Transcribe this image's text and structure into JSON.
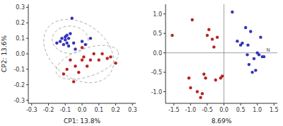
{
  "chart_data": [
    {
      "type": "scatter",
      "xlabel": "CP1: 13.8%",
      "ylabel": "CP2: 13.6%",
      "xlim": [
        -0.32,
        0.32
      ],
      "ylim": [
        -0.32,
        0.32
      ],
      "xticks": [
        -0.3,
        -0.2,
        -0.1,
        {
          "value": 0.0,
          "label": "0.0"
        },
        0.1,
        0.2,
        0.3
      ],
      "yticks": [
        -0.3,
        -0.2,
        -0.1,
        {
          "value": 0.0,
          "label": "0.0"
        },
        0.1,
        0.2,
        0.3
      ],
      "series": [
        {
          "color": "#3333bb",
          "x": [
            -0.15,
            -0.13,
            -0.12,
            -0.11,
            -0.1,
            -0.1,
            -0.09,
            -0.09,
            -0.08,
            -0.08,
            -0.07,
            -0.06,
            -0.05,
            -0.04,
            0.0,
            0.02,
            0.05
          ],
          "values": [
            0.07,
            0.08,
            0.1,
            0.06,
            0.09,
            0.11,
            0.07,
            0.12,
            0.1,
            0.05,
            0.13,
            0.23,
            0.07,
            0.03,
            0.08,
            0.06,
            0.1
          ]
        },
        {
          "color": "#bb2222",
          "x": [
            -0.11,
            -0.09,
            -0.07,
            -0.05,
            -0.04,
            -0.02,
            0.0,
            0.0,
            0.01,
            0.03,
            0.05,
            0.07,
            0.1,
            0.12,
            0.15,
            0.17,
            0.2
          ],
          "values": [
            -0.13,
            -0.1,
            -0.04,
            -0.18,
            -0.08,
            -0.12,
            -0.04,
            0.04,
            -0.02,
            -0.08,
            -0.04,
            0.0,
            -0.04,
            0.0,
            -0.03,
            -0.02,
            -0.06
          ]
        }
      ],
      "ellipses": [
        {
          "color": "#aaaaaa",
          "line_style": "dashed",
          "cx": -0.070588,
          "cy": 0.091176,
          "width": 0.21382,
          "height": 0.1765,
          "angle": -2.32
        },
        {
          "color": "#aaaaaa",
          "line_style": "dashed",
          "cx": 0.030588,
          "cy": -0.055294,
          "width": 0.39208,
          "height": 0.17885,
          "angle": 21.14
        },
        {
          "color": "#aaaaaa",
          "line_style": "dashed",
          "cx": -0.02,
          "cy": 0.017941,
          "width": 0.47489,
          "height": 0.33997,
          "angle": -43.45
        }
      ]
    },
    {
      "type": "scatter",
      "xlabel": "8.69%",
      "xlim": [
        -1.75,
        1.6
      ],
      "ylim": [
        -1.3,
        1.25
      ],
      "xticks": [
        -1.5,
        {
          "value": -1.0,
          "label": "-1.0"
        },
        -0.5,
        {
          "value": 0.0,
          "label": "0.0"
        },
        0.5,
        {
          "value": 1.0,
          "label": "1.0"
        },
        1.5
      ],
      "yticks": [
        {
          "value": -1.0,
          "label": "-1.0"
        },
        -0.5,
        {
          "value": 0.0,
          "label": "0.0"
        },
        0.5,
        {
          "value": 1.0,
          "label": "1.0"
        }
      ],
      "series": [
        {
          "color": "#3333bb",
          "x": [
            0.25,
            0.5,
            0.55,
            0.65,
            0.7,
            0.72,
            0.75,
            0.8,
            0.85,
            0.9,
            0.95,
            1.0,
            1.05,
            1.1,
            1.15,
            1.2,
            0.4
          ],
          "values": [
            1.05,
            0.2,
            0.25,
            0.65,
            -0.05,
            0.2,
            -0.3,
            0.55,
            -0.5,
            -0.15,
            -0.45,
            0.0,
            -0.05,
            0.4,
            -0.1,
            -0.1,
            0.3
          ]
        },
        {
          "color": "#bb2222",
          "x": [
            -1.55,
            -1.05,
            -1.0,
            -0.95,
            -0.8,
            -0.65,
            -0.6,
            -0.55,
            -0.5,
            -0.45,
            -0.35,
            -0.3,
            -0.25,
            -0.2,
            -0.1,
            -0.05,
            -0.7
          ],
          "values": [
            0.45,
            -0.65,
            -0.9,
            0.85,
            -1.0,
            -1.05,
            -0.55,
            -0.65,
            0.45,
            0.6,
            0.35,
            0.15,
            -0.7,
            0.4,
            -0.65,
            -0.6,
            -1.15
          ]
        }
      ],
      "hlines": [
        0
      ],
      "vlines": [
        0
      ],
      "annotations": [
        {
          "text": "N",
          "x": 1.25,
          "y": 0.0
        }
      ]
    }
  ]
}
